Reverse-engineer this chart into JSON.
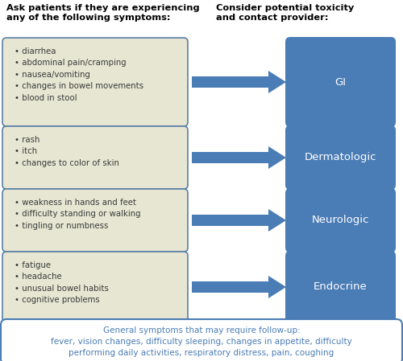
{
  "title_left": "Ask patients if they are experiencing\nany of the following symptoms:",
  "title_right": "Consider potential toxicity\nand contact provider:",
  "symptom_boxes": [
    {
      "lines": [
        "• diarrhea",
        "• abdominal pain/cramping",
        "• nausea/vomiting",
        "• changes in bowel movements",
        "• blood in stool"
      ],
      "label": "GI"
    },
    {
      "lines": [
        "• rash",
        "• itch",
        "• changes to color of skin"
      ],
      "label": "Dermatologic"
    },
    {
      "lines": [
        "• weakness in hands and feet",
        "• difficulty standing or walking",
        "• tingling or numbness"
      ],
      "label": "Neurologic"
    },
    {
      "lines": [
        "• fatigue",
        "• headache",
        "• unusual bowel habits",
        "• cognitive problems"
      ],
      "label": "Endocrine"
    }
  ],
  "bottom_text": "General symptoms that may require follow-up:\nfever, vision changes, difficulty sleeping, changes in appetite, difficulty\nperforming daily activities, respiratory distress, pain, coughing",
  "symptom_box_bg": "#e6e6d2",
  "symptom_box_border": "#5a7fa8",
  "label_box_bg": "#4a7cb5",
  "arrow_color": "#4a7cb5",
  "bottom_box_border": "#4a7cb5",
  "bottom_box_bg": "#ffffff",
  "label_text_color": "#ffffff",
  "symptom_text_color": "#3a3a3a",
  "header_text_color": "#000000",
  "bottom_text_color": "#4a7cb5"
}
